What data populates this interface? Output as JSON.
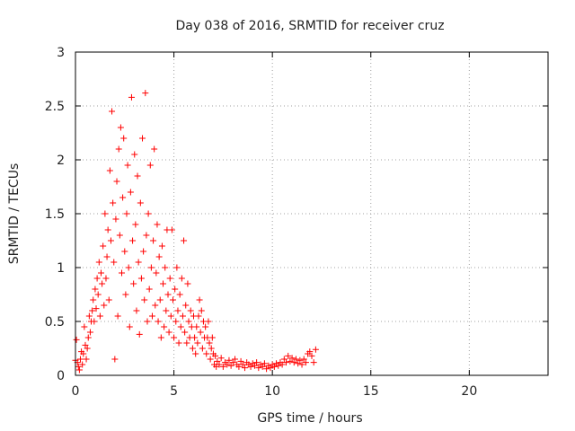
{
  "chart_data": {
    "type": "scatter",
    "title": "Day 038 of 2016, SRMTID for receiver cruz",
    "xlabel": "GPS time / hours",
    "ylabel": "SRMTID / TECUs",
    "xlim": [
      0,
      24
    ],
    "ylim": [
      0,
      3
    ],
    "xticks": [
      0,
      5,
      10,
      15,
      20
    ],
    "yticks": [
      0,
      0.5,
      1,
      1.5,
      2,
      2.5,
      3
    ],
    "ytick_labels": [
      "0",
      "0.5",
      "1",
      "1.5",
      "2",
      "2.5",
      "3"
    ],
    "grid": true,
    "marker": "+",
    "color": "#ff0000",
    "series": [
      {
        "name": "cruz",
        "points": [
          [
            0.0,
            0.14
          ],
          [
            0.05,
            0.33
          ],
          [
            0.1,
            0.12
          ],
          [
            0.15,
            0.08
          ],
          [
            0.2,
            0.05
          ],
          [
            0.25,
            0.15
          ],
          [
            0.3,
            0.22
          ],
          [
            0.35,
            0.1
          ],
          [
            0.4,
            0.2
          ],
          [
            0.45,
            0.45
          ],
          [
            0.5,
            0.28
          ],
          [
            0.55,
            0.15
          ],
          [
            0.6,
            0.25
          ],
          [
            0.65,
            0.35
          ],
          [
            0.7,
            0.55
          ],
          [
            0.75,
            0.4
          ],
          [
            0.8,
            0.5
          ],
          [
            0.85,
            0.6
          ],
          [
            0.9,
            0.7
          ],
          [
            0.95,
            0.5
          ],
          [
            1.0,
            0.8
          ],
          [
            1.05,
            0.62
          ],
          [
            1.1,
            0.9
          ],
          [
            1.15,
            0.75
          ],
          [
            1.2,
            1.05
          ],
          [
            1.25,
            0.55
          ],
          [
            1.3,
            0.95
          ],
          [
            1.35,
            0.85
          ],
          [
            1.4,
            1.2
          ],
          [
            1.45,
            0.65
          ],
          [
            1.5,
            1.5
          ],
          [
            1.55,
            0.9
          ],
          [
            1.6,
            1.1
          ],
          [
            1.65,
            1.35
          ],
          [
            1.7,
            0.7
          ],
          [
            1.75,
            1.9
          ],
          [
            1.8,
            1.25
          ],
          [
            1.85,
            2.45
          ],
          [
            1.9,
            1.6
          ],
          [
            1.95,
            1.05
          ],
          [
            2.0,
            0.15
          ],
          [
            2.05,
            1.45
          ],
          [
            2.1,
            1.8
          ],
          [
            2.15,
            0.55
          ],
          [
            2.2,
            2.1
          ],
          [
            2.25,
            1.3
          ],
          [
            2.3,
            2.3
          ],
          [
            2.35,
            0.95
          ],
          [
            2.4,
            1.65
          ],
          [
            2.45,
            2.2
          ],
          [
            2.5,
            1.15
          ],
          [
            2.55,
            0.75
          ],
          [
            2.6,
            1.5
          ],
          [
            2.65,
            1.95
          ],
          [
            2.7,
            1.0
          ],
          [
            2.75,
            0.45
          ],
          [
            2.8,
            1.7
          ],
          [
            2.85,
            2.58
          ],
          [
            2.9,
            1.25
          ],
          [
            2.95,
            0.85
          ],
          [
            3.0,
            2.05
          ],
          [
            3.05,
            1.4
          ],
          [
            3.1,
            0.6
          ],
          [
            3.15,
            1.85
          ],
          [
            3.2,
            1.05
          ],
          [
            3.25,
            0.38
          ],
          [
            3.3,
            1.6
          ],
          [
            3.35,
            0.9
          ],
          [
            3.4,
            2.2
          ],
          [
            3.45,
            1.15
          ],
          [
            3.5,
            0.7
          ],
          [
            3.55,
            2.62
          ],
          [
            3.6,
            1.3
          ],
          [
            3.65,
            0.5
          ],
          [
            3.7,
            1.5
          ],
          [
            3.75,
            0.8
          ],
          [
            3.8,
            1.95
          ],
          [
            3.85,
            1.0
          ],
          [
            3.9,
            0.55
          ],
          [
            3.95,
            1.25
          ],
          [
            4.0,
            2.1
          ],
          [
            4.05,
            0.65
          ],
          [
            4.1,
            0.95
          ],
          [
            4.15,
            1.4
          ],
          [
            4.2,
            0.5
          ],
          [
            4.25,
            1.1
          ],
          [
            4.3,
            0.7
          ],
          [
            4.35,
            0.35
          ],
          [
            4.4,
            1.2
          ],
          [
            4.45,
            0.85
          ],
          [
            4.5,
            0.45
          ],
          [
            4.55,
            1.0
          ],
          [
            4.6,
            0.6
          ],
          [
            4.65,
            1.35
          ],
          [
            4.7,
            0.75
          ],
          [
            4.75,
            0.4
          ],
          [
            4.8,
            0.9
          ],
          [
            4.85,
            0.55
          ],
          [
            4.9,
            1.35
          ],
          [
            4.95,
            0.7
          ],
          [
            5.0,
            0.35
          ],
          [
            5.05,
            0.8
          ],
          [
            5.1,
            0.5
          ],
          [
            5.15,
            1.0
          ],
          [
            5.2,
            0.6
          ],
          [
            5.25,
            0.3
          ],
          [
            5.3,
            0.75
          ],
          [
            5.35,
            0.45
          ],
          [
            5.4,
            0.9
          ],
          [
            5.45,
            0.55
          ],
          [
            5.5,
            1.25
          ],
          [
            5.55,
            0.4
          ],
          [
            5.6,
            0.65
          ],
          [
            5.65,
            0.3
          ],
          [
            5.7,
            0.85
          ],
          [
            5.75,
            0.5
          ],
          [
            5.8,
            0.35
          ],
          [
            5.85,
            0.6
          ],
          [
            5.9,
            0.45
          ],
          [
            5.95,
            0.25
          ],
          [
            6.0,
            0.55
          ],
          [
            6.05,
            0.35
          ],
          [
            6.1,
            0.2
          ],
          [
            6.15,
            0.45
          ],
          [
            6.2,
            0.3
          ],
          [
            6.25,
            0.55
          ],
          [
            6.3,
            0.7
          ],
          [
            6.35,
            0.4
          ],
          [
            6.4,
            0.6
          ],
          [
            6.45,
            0.25
          ],
          [
            6.5,
            0.5
          ],
          [
            6.55,
            0.35
          ],
          [
            6.6,
            0.45
          ],
          [
            6.65,
            0.2
          ],
          [
            6.7,
            0.35
          ],
          [
            6.75,
            0.5
          ],
          [
            6.8,
            0.3
          ],
          [
            6.85,
            0.15
          ],
          [
            6.9,
            0.25
          ],
          [
            6.95,
            0.35
          ],
          [
            7.0,
            0.2
          ],
          [
            7.05,
            0.1
          ],
          [
            7.1,
            0.18
          ],
          [
            7.15,
            0.08
          ],
          [
            7.2,
            0.13
          ],
          [
            7.3,
            0.1
          ],
          [
            7.4,
            0.16
          ],
          [
            7.5,
            0.08
          ],
          [
            7.6,
            0.12
          ],
          [
            7.7,
            0.1
          ],
          [
            7.8,
            0.14
          ],
          [
            7.9,
            0.09
          ],
          [
            8.0,
            0.12
          ],
          [
            8.1,
            0.15
          ],
          [
            8.2,
            0.1
          ],
          [
            8.3,
            0.08
          ],
          [
            8.4,
            0.13
          ],
          [
            8.5,
            0.1
          ],
          [
            8.6,
            0.07
          ],
          [
            8.7,
            0.12
          ],
          [
            8.8,
            0.1
          ],
          [
            8.9,
            0.08
          ],
          [
            9.0,
            0.11
          ],
          [
            9.1,
            0.09
          ],
          [
            9.2,
            0.12
          ],
          [
            9.3,
            0.07
          ],
          [
            9.4,
            0.1
          ],
          [
            9.5,
            0.08
          ],
          [
            9.6,
            0.11
          ],
          [
            9.7,
            0.06
          ],
          [
            9.8,
            0.09
          ],
          [
            9.9,
            0.07
          ],
          [
            10.0,
            0.1
          ],
          [
            10.1,
            0.08
          ],
          [
            10.2,
            0.11
          ],
          [
            10.3,
            0.09
          ],
          [
            10.4,
            0.12
          ],
          [
            10.5,
            0.1
          ],
          [
            10.6,
            0.15
          ],
          [
            10.7,
            0.12
          ],
          [
            10.8,
            0.18
          ],
          [
            10.9,
            0.13
          ],
          [
            11.0,
            0.16
          ],
          [
            11.1,
            0.12
          ],
          [
            11.2,
            0.15
          ],
          [
            11.3,
            0.11
          ],
          [
            11.4,
            0.14
          ],
          [
            11.5,
            0.1
          ],
          [
            11.6,
            0.15
          ],
          [
            11.7,
            0.12
          ],
          [
            11.8,
            0.2
          ],
          [
            11.9,
            0.22
          ],
          [
            12.0,
            0.18
          ],
          [
            12.1,
            0.12
          ],
          [
            12.2,
            0.24
          ]
        ]
      }
    ]
  }
}
